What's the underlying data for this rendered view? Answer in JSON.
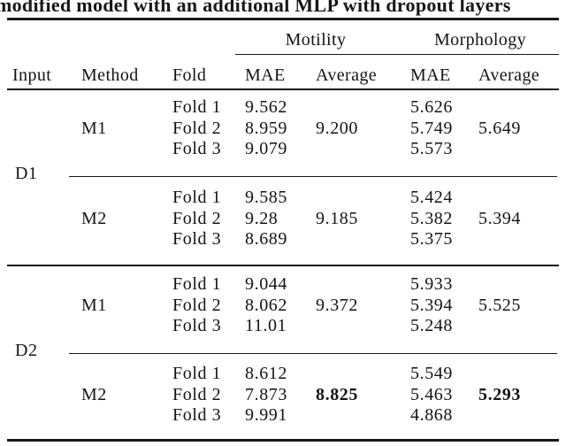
{
  "colors": {
    "text": "#141414",
    "background": "#ffffff"
  },
  "caption": "modified model with an additional MLP with dropout layers",
  "table": {
    "group_headers": {
      "motility": "Motility",
      "morphology": "Morphology"
    },
    "columns": {
      "input": "Input",
      "method": "Method",
      "fold": "Fold",
      "mae_motility": "MAE",
      "avg_motility": "Average",
      "mae_morphology": "MAE",
      "avg_morphology": "Average"
    },
    "sections": [
      {
        "input": "D1",
        "methods": [
          {
            "method": "M1",
            "rows": [
              {
                "fold": "Fold 1",
                "mot_mae": "9.562",
                "mot_avg": "",
                "mor_mae": "5.626",
                "mor_avg": ""
              },
              {
                "fold": "Fold 2",
                "mot_mae": "8.959",
                "mot_avg": "9.200",
                "mor_mae": "5.749",
                "mor_avg": "5.649"
              },
              {
                "fold": "Fold 3",
                "mot_mae": "9.079",
                "mot_avg": "",
                "mor_mae": "5.573",
                "mor_avg": ""
              }
            ]
          },
          {
            "method": "M2",
            "rows": [
              {
                "fold": "Fold 1",
                "mot_mae": "9.585",
                "mot_avg": "",
                "mor_mae": "5.424",
                "mor_avg": ""
              },
              {
                "fold": "Fold 2",
                "mot_mae": "9.28",
                "mot_avg": "9.185",
                "mor_mae": "5.382",
                "mor_avg": "5.394"
              },
              {
                "fold": "Fold 3",
                "mot_mae": "8.689",
                "mot_avg": "",
                "mor_mae": "5.375",
                "mor_avg": ""
              }
            ]
          }
        ]
      },
      {
        "input": "D2",
        "methods": [
          {
            "method": "M1",
            "rows": [
              {
                "fold": "Fold 1",
                "mot_mae": "9.044",
                "mot_avg": "",
                "mor_mae": "5.933",
                "mor_avg": ""
              },
              {
                "fold": "Fold 2",
                "mot_mae": "8.062",
                "mot_avg": "9.372",
                "mor_mae": "5.394",
                "mor_avg": "5.525"
              },
              {
                "fold": "Fold 3",
                "mot_mae": "11.01",
                "mot_avg": "",
                "mor_mae": "5.248",
                "mor_avg": ""
              }
            ]
          },
          {
            "method": "M2",
            "rows": [
              {
                "fold": "Fold 1",
                "mot_mae": "8.612",
                "mot_avg": "",
                "mor_mae": "5.549",
                "mor_avg": ""
              },
              {
                "fold": "Fold 2",
                "mot_mae": "7.873",
                "mot_avg": "8.825",
                "mor_mae": "5.463",
                "mor_avg": "5.293",
                "avg_bold": true
              },
              {
                "fold": "Fold 3",
                "mot_mae": "9.991",
                "mot_avg": "",
                "mor_mae": "4.868",
                "mor_avg": ""
              }
            ]
          }
        ]
      }
    ]
  }
}
